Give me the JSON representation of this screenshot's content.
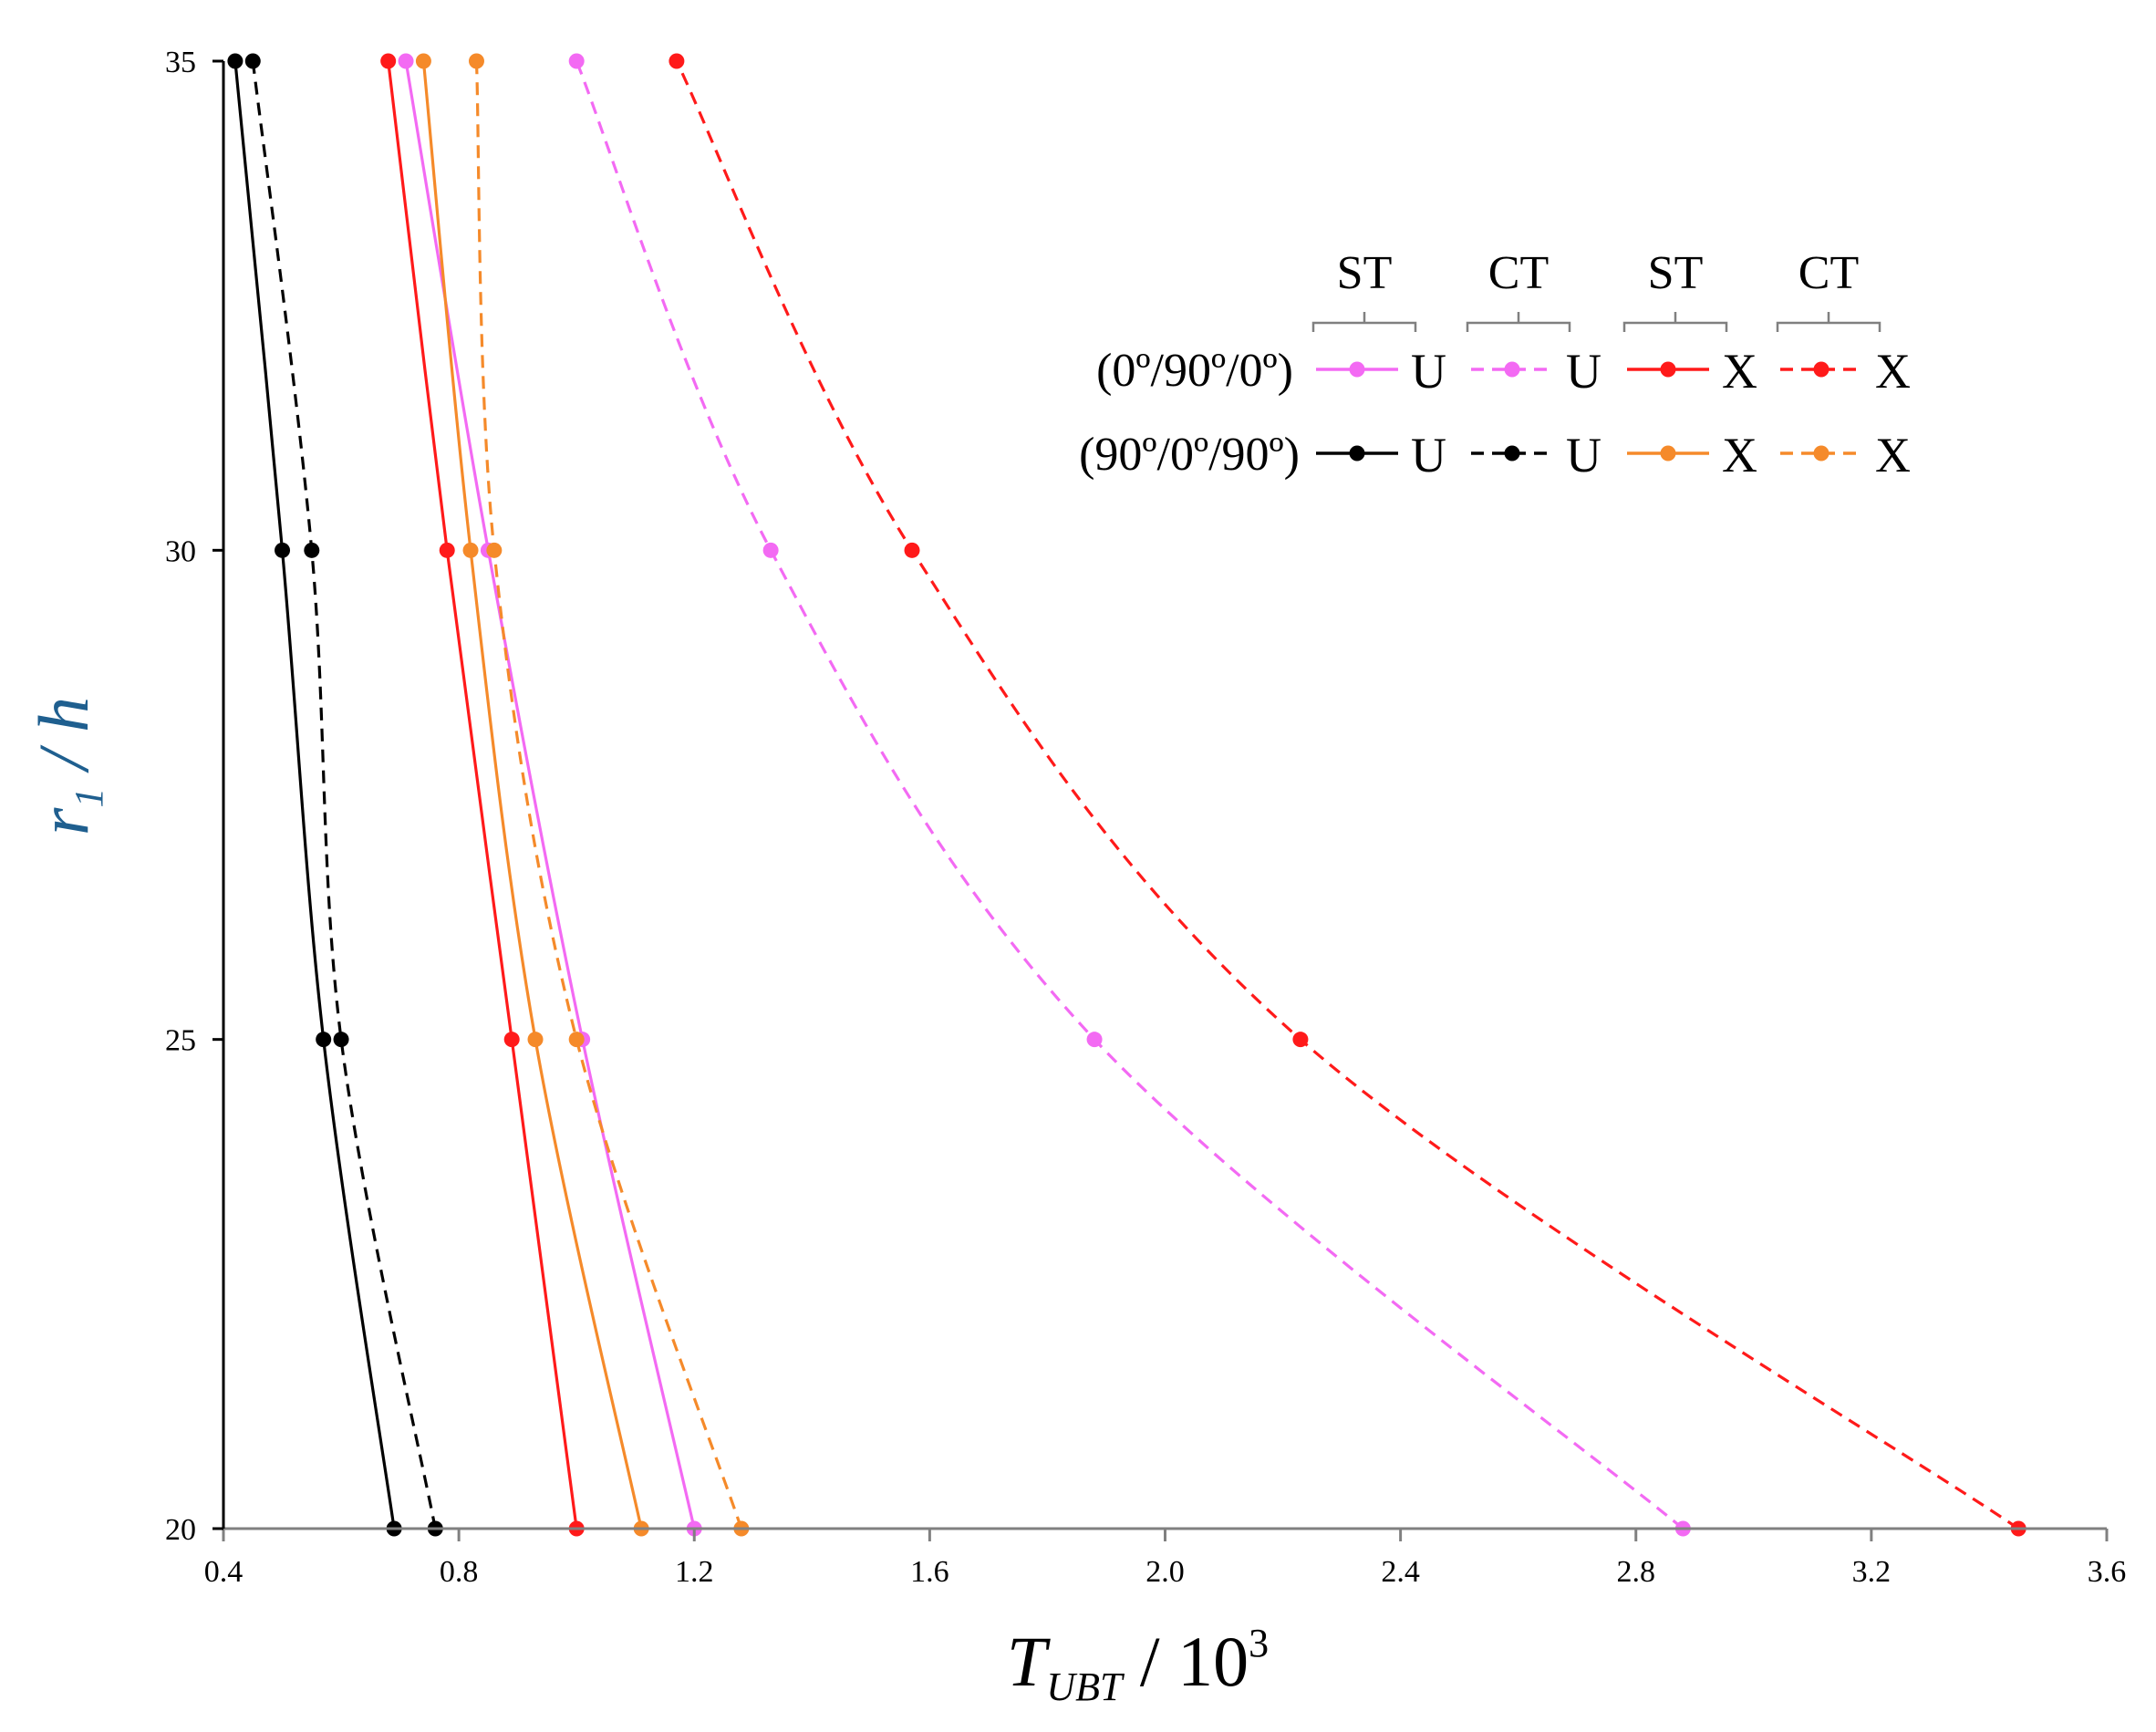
{
  "chart_data": {
    "type": "line",
    "title": "",
    "xlabel": {
      "main": "T",
      "subscript": "UBT",
      "rest": " / 10",
      "superscript": "3"
    },
    "ylabel": {
      "main": "r",
      "subscript": "1",
      "rest": " / h"
    },
    "xlim": [
      0.4,
      3.6
    ],
    "ylim": [
      20,
      35
    ],
    "x_ticks": [
      0.4,
      0.8,
      1.2,
      1.6,
      2.0,
      2.4,
      2.8,
      3.2,
      3.6
    ],
    "x_tick_labels": [
      "0.4",
      "0.8",
      "1.2",
      "1.6",
      "2.0",
      "2.4",
      "2.8",
      "3.2",
      "3.6"
    ],
    "y_ticks": [
      20,
      25,
      30,
      35
    ],
    "y_tick_labels": [
      "20",
      "25",
      "30",
      "35"
    ],
    "grid": false,
    "legend": {
      "placement": "top-right",
      "group_headers": [
        "ST",
        "CT",
        "ST",
        "CT"
      ],
      "row_labels": [
        "(0º/90º/0º)",
        "(90º/0º/90º)"
      ]
    },
    "series": [
      {
        "id": "s-0-90-0-st-u",
        "name": "(0º/90º/0º) ST U",
        "legend_text": "U",
        "color": "#f36af3",
        "dash": false,
        "points": [
          [
            1.2,
            20
          ],
          [
            1.01,
            25
          ],
          [
            0.85,
            30
          ],
          [
            0.71,
            35
          ]
        ]
      },
      {
        "id": "s-0-90-0-ct-u",
        "name": "(0º/90º/0º) CT U",
        "legend_text": "U",
        "color": "#f36af3",
        "dash": true,
        "points": [
          [
            2.88,
            20
          ],
          [
            1.88,
            25
          ],
          [
            1.33,
            30
          ],
          [
            1.0,
            35
          ]
        ]
      },
      {
        "id": "s-0-90-0-st-x",
        "name": "(0º/90º/0º) ST X",
        "legend_text": "X",
        "color": "#ff1a1a",
        "dash": false,
        "points": [
          [
            1.0,
            20
          ],
          [
            0.89,
            25
          ],
          [
            0.78,
            30
          ],
          [
            0.68,
            35
          ]
        ]
      },
      {
        "id": "s-0-90-0-ct-x",
        "name": "(0º/90º/0º) CT X",
        "legend_text": "X",
        "color": "#ff1a1a",
        "dash": true,
        "points": [
          [
            3.45,
            20
          ],
          [
            2.23,
            25
          ],
          [
            1.57,
            30
          ],
          [
            1.17,
            35
          ]
        ]
      },
      {
        "id": "s-90-0-90-st-u",
        "name": "(90º/0º/90º) ST U",
        "legend_text": "U",
        "color": "#000000",
        "dash": false,
        "points": [
          [
            0.69,
            20
          ],
          [
            0.57,
            25
          ],
          [
            0.5,
            30
          ],
          [
            0.42,
            35
          ]
        ]
      },
      {
        "id": "s-90-0-90-ct-u",
        "name": "(90º/0º/90º) CT U",
        "legend_text": "U",
        "color": "#000000",
        "dash": true,
        "points": [
          [
            0.76,
            20
          ],
          [
            0.6,
            25
          ],
          [
            0.55,
            30
          ],
          [
            0.45,
            35
          ]
        ]
      },
      {
        "id": "s-90-0-90-st-x",
        "name": "(90º/0º/90º) ST X",
        "legend_text": "X",
        "color": "#f58a2a",
        "dash": false,
        "points": [
          [
            1.11,
            20
          ],
          [
            0.93,
            25
          ],
          [
            0.82,
            30
          ],
          [
            0.74,
            35
          ]
        ]
      },
      {
        "id": "s-90-0-90-ct-x",
        "name": "(90º/0º/90º) CT X",
        "legend_text": "X",
        "color": "#f58a2a",
        "dash": true,
        "points": [
          [
            1.28,
            20
          ],
          [
            1.0,
            25
          ],
          [
            0.86,
            30
          ],
          [
            0.83,
            35
          ]
        ]
      }
    ]
  }
}
